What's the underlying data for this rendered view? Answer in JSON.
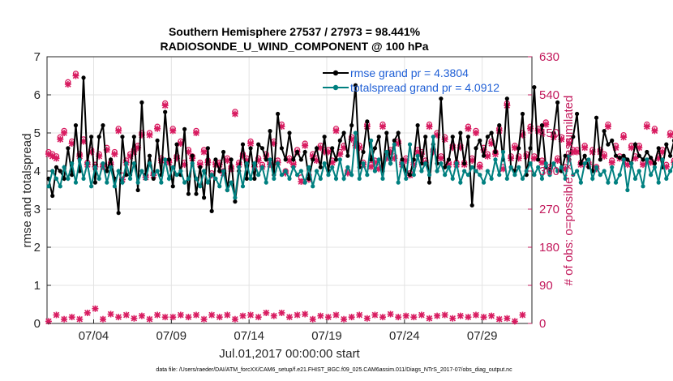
{
  "chart_data": {
    "type": "line",
    "title": "Southern Hemisphere 27537 / 27973 = 98.441%",
    "subtitle": "RADIOSONDE_U_WIND_COMPONENT @ 100 hPa",
    "xlabel": "Jul.01,2017 00:00:00 start",
    "ylabel": "rmse and totalspread",
    "ylabel_right": "# of obs: o=possible; ×=assimilated",
    "footnote": "data file: /Users/raeder/DAI/ATM_forcXX/CAM6_setup/f.e21.FHIST_BGC.f09_025.CAM6assim.011/Diags_NTrS_2017-07/obs_diag_output.nc",
    "ylim": [
      0,
      7
    ],
    "ylim_right": [
      0,
      630
    ],
    "xlim": [
      1,
      32.2
    ],
    "yticks": [
      "0",
      "1",
      "2",
      "3",
      "4",
      "5",
      "6",
      "7"
    ],
    "yticks_right": [
      "0",
      "90",
      "180",
      "270",
      "360",
      "450",
      "540",
      "630"
    ],
    "xticks": [
      {
        "day": 4,
        "label": "07/04"
      },
      {
        "day": 9,
        "label": "07/09"
      },
      {
        "day": 14,
        "label": "07/14"
      },
      {
        "day": 19,
        "label": "07/19"
      },
      {
        "day": 24,
        "label": "07/24"
      },
      {
        "day": 29,
        "label": "07/29"
      }
    ],
    "grid": true,
    "legend_position": "top-right",
    "x_start_day": 1.1,
    "x_step_days": 0.25,
    "series": [
      {
        "name": "rmse grand pr = 4.3804",
        "color": "#000000",
        "values": [
          3.8,
          3.35,
          4.1,
          4.0,
          3.8,
          4.6,
          3.9,
          5.2,
          4.0,
          6.45,
          4.2,
          4.9,
          3.7,
          4.9,
          5.2,
          4.0,
          4.3,
          3.8,
          2.9,
          4.9,
          3.9,
          3.9,
          4.9,
          3.5,
          5.8,
          3.9,
          4.4,
          3.8,
          4.8,
          3.9,
          5.55,
          4.3,
          3.6,
          4.7,
          3.9,
          5.1,
          3.4,
          4.4,
          3.4,
          4.1,
          3.3,
          4.6,
          2.95,
          4.3,
          4.0,
          4.5,
          3.5,
          4.3,
          3.2,
          4.0,
          4.7,
          3.8,
          4.6,
          3.8,
          4.7,
          4.6,
          4.3,
          5.05,
          3.9,
          5.5,
          4.6,
          4.3,
          5.0,
          4.3,
          4.5,
          4.3,
          4.5,
          3.8,
          4.3,
          4.6,
          4.1,
          4.9,
          4.0,
          4.6,
          4.3,
          4.8,
          5.0,
          4.4,
          5.2,
          6.25,
          4.1,
          4.5,
          5.3,
          4.3,
          4.6,
          4.9,
          4.0,
          5.0,
          4.2,
          4.8,
          5.0,
          4.3,
          4.0,
          3.9,
          4.3,
          5.2,
          4.2,
          4.9,
          3.7,
          4.7,
          4.2,
          5.9,
          4.1,
          4.3,
          4.9,
          4.2,
          5.0,
          4.2,
          4.9,
          3.1,
          4.6,
          4.8,
          4.4,
          4.9,
          5.0,
          4.5,
          5.2,
          4.3,
          5.9,
          4.1,
          4.0,
          4.6,
          5.5,
          3.9,
          4.6,
          6.2,
          4.3,
          5.2,
          4.1,
          4.0,
          5.0,
          5.8,
          4.0,
          4.4,
          4.3,
          4.9,
          5.5,
          4.2,
          4.4,
          4.1,
          4.0,
          5.4,
          4.3,
          5.05,
          4.7,
          4.8,
          4.4,
          4.35,
          4.4,
          4.3,
          4.2,
          4.7,
          4.4,
          4.3,
          4.5,
          4.35,
          4.2,
          4.6,
          4.1,
          4.7,
          4.4,
          4.8,
          4.2,
          5.9,
          4.3,
          4.6,
          4.3,
          6.2,
          4.5,
          5.4,
          4.1,
          3.2,
          4.3,
          5.0,
          4.1,
          4.7,
          3.8
        ]
      },
      {
        "name": "totalspread grand pr = 4.0912",
        "color": "#008080",
        "values": [
          3.6,
          4.0,
          3.8,
          3.6,
          4.1,
          3.8,
          4.2,
          3.7,
          4.3,
          3.8,
          4.2,
          3.6,
          4.1,
          3.8,
          4.2,
          3.7,
          4.1,
          3.6,
          4.0,
          3.7,
          4.2,
          3.8,
          4.2,
          3.7,
          4.0,
          3.8,
          4.2,
          3.9,
          4.0,
          3.7,
          4.3,
          3.8,
          4.1,
          3.9,
          4.0,
          3.7,
          3.8,
          4.2,
          3.8,
          3.6,
          4.0,
          3.7,
          3.9,
          3.8,
          3.6,
          4.0,
          3.5,
          3.7,
          3.3,
          4.1,
          3.6,
          4.2,
          3.8,
          4.2,
          3.9,
          4.1,
          3.7,
          4.3,
          3.8,
          4.2,
          3.9,
          4.0,
          3.8,
          4.1,
          3.9,
          4.0,
          3.7,
          4.1,
          3.6,
          4.0,
          3.8,
          4.2,
          3.9,
          4.1,
          3.8,
          4.3,
          3.8,
          4.1,
          3.9,
          5.0,
          3.8,
          4.2,
          3.9,
          4.8,
          4.0,
          4.3,
          3.8,
          4.5,
          4.2,
          4.7,
          3.7,
          4.2,
          3.8,
          4.7,
          3.9,
          4.4,
          4.0,
          4.2,
          3.9,
          4.9,
          4.0,
          4.2,
          3.9,
          4.1,
          3.8,
          4.2,
          3.7,
          4.0,
          3.9,
          4.1,
          4.0,
          3.9,
          3.7,
          4.0,
          3.8,
          4.3,
          3.9,
          4.5,
          3.8,
          4.1,
          3.9,
          4.1,
          3.8,
          4.0,
          4.2,
          3.9,
          4.1,
          3.8,
          4.2,
          3.9,
          4.2,
          4.0,
          4.1,
          3.8,
          4.4,
          3.9,
          4.0,
          3.7,
          4.2,
          4.3,
          3.8,
          4.1,
          3.9,
          4.0,
          3.7,
          4.1,
          3.7,
          3.9,
          4.3,
          3.5,
          4.2,
          3.8,
          4.0,
          3.6,
          4.3,
          3.9,
          4.1,
          3.7,
          4.3,
          3.8,
          4.0,
          4.2,
          4.0,
          4.1,
          3.9,
          4.5,
          4.3,
          4.2,
          4.9,
          3.9,
          4.4,
          4.0,
          3.8,
          4.3,
          4.0,
          3.6,
          4.1,
          3.8
        ]
      }
    ],
    "obs_possible": {
      "name": "possible",
      "color": "#d81b60",
      "values": [
        405,
        400,
        395,
        440,
        455,
        570,
        430,
        590,
        400,
        435,
        380,
        410,
        375,
        400,
        375,
        415,
        380,
        405,
        460,
        350,
        385,
        400,
        410,
        420,
        450,
        350,
        450,
        355,
        465,
        390,
        520,
        385,
        460,
        395,
        430,
        380,
        410,
        395,
        455,
        380,
        410,
        385,
        355,
        380,
        380,
        360,
        390,
        370,
        500,
        380,
        400,
        390,
        430,
        375,
        390,
        375,
        400,
        380,
        430,
        385,
        470,
        360,
        390,
        380,
        410,
        345,
        425,
        350,
        400,
        390,
        420,
        410,
        410,
        385,
        460,
        405,
        420,
        360,
        440,
        425,
        420,
        380,
        470,
        375,
        385,
        370,
        470,
        395,
        410,
        395,
        430,
        380,
        390,
        355,
        380,
        410,
        405,
        385,
        470,
        410,
        450,
        395,
        440,
        380,
        420,
        380,
        420,
        380,
        465,
        390,
        455,
        375,
        415,
        400,
        430,
        405,
        460,
        370,
        520,
        395,
        420,
        395,
        450,
        400,
        465,
        395,
        460,
        385,
        475,
        370,
        445,
        390,
        440,
        370,
        430,
        410,
        410,
        380,
        420,
        380,
        410,
        370,
        410,
        400,
        470,
        385,
        420,
        395,
        445,
        380,
        420,
        395,
        420,
        380,
        470,
        385,
        460,
        395,
        410,
        375,
        450,
        385,
        470,
        400,
        450,
        375,
        440,
        395,
        375,
        385,
        370,
        395,
        380,
        390,
        360
      ],
      "assimilated": [
        400,
        395,
        390,
        435,
        450,
        565,
        425,
        585,
        395,
        430,
        375,
        405,
        370,
        395,
        370,
        410,
        375,
        400,
        455,
        340,
        380,
        395,
        405,
        415,
        445,
        345,
        445,
        350,
        460,
        385,
        515,
        380,
        455,
        390,
        425,
        375,
        405,
        390,
        450,
        375,
        405,
        380,
        350,
        375,
        375,
        355,
        385,
        365,
        495,
        375,
        395,
        385,
        425,
        370,
        385,
        370,
        395,
        375,
        425,
        380,
        465,
        355,
        385,
        375,
        405,
        335,
        420,
        340,
        395,
        385,
        415,
        405,
        405,
        380,
        455,
        400,
        415,
        355,
        435,
        420,
        415,
        375,
        465,
        370,
        380,
        365,
        465,
        390,
        405,
        390,
        425,
        375,
        385,
        350,
        375,
        405,
        400,
        380,
        465,
        405,
        445,
        390,
        435,
        375,
        415,
        375,
        415,
        375,
        460,
        385,
        450,
        370,
        410,
        395,
        425,
        400,
        455,
        365,
        515,
        390,
        415,
        390,
        445,
        395,
        460,
        390,
        455,
        380,
        470,
        365,
        440,
        385,
        435,
        365,
        425,
        405,
        405,
        375,
        415,
        375,
        405,
        365,
        405,
        395,
        465,
        380,
        415,
        390,
        440,
        375,
        415,
        390,
        415,
        375,
        465,
        380,
        455,
        390,
        405,
        370,
        445,
        380,
        465,
        395,
        445,
        370,
        435,
        390,
        370,
        380,
        365,
        390,
        375,
        385,
        355
      ]
    },
    "obs_low": {
      "name": "low level counts",
      "x_start_day": 1.1,
      "x_step_days": 0.5,
      "values": [
        5,
        20,
        10,
        15,
        10,
        25,
        35,
        10,
        22,
        15,
        20,
        12,
        18,
        10,
        20,
        15,
        15,
        20,
        15,
        20,
        10,
        20,
        15,
        20,
        10,
        18,
        20,
        15,
        25,
        18,
        25,
        15,
        20,
        22,
        10,
        18,
        15,
        20,
        10,
        15,
        20,
        12,
        20,
        15,
        22,
        15,
        18,
        15,
        20,
        12,
        18,
        20,
        12,
        18,
        15,
        20,
        15,
        18,
        10,
        12,
        5,
        20
      ]
    }
  }
}
